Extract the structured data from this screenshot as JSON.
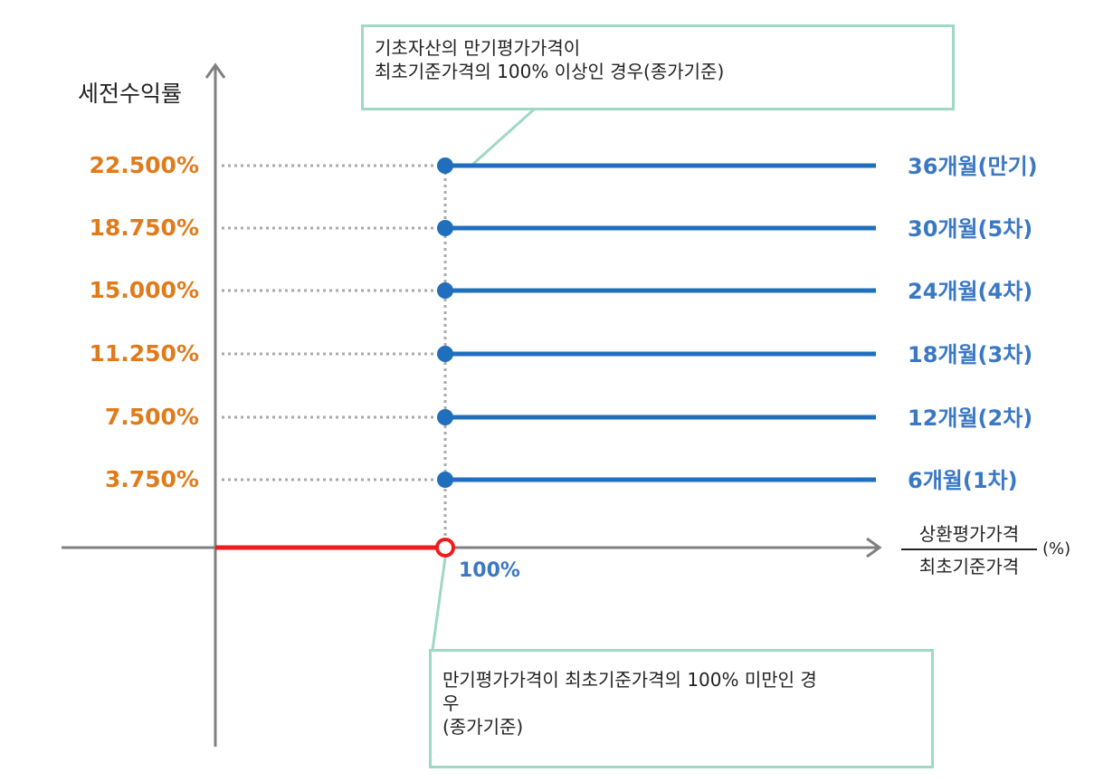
{
  "y_axis": {
    "label": "세전수익률"
  },
  "x_axis": {
    "value_label": "100%",
    "fraction_numerator": "상환평가가격",
    "fraction_denominator": "최초기준가격",
    "unit": "(%)"
  },
  "annotations": {
    "top": [
      "기초자산의 만기평가가격이",
      "최초기준가격의 100% 이상인 경우(종가기준)"
    ],
    "bottom": [
      "만기평가가격이 최초기준가격의 100% 미만인 경",
      "우",
      "(종가기준)"
    ]
  },
  "payoffs": [
    {
      "rate": "22.500%",
      "label": "36개월(만기)"
    },
    {
      "rate": "18.750%",
      "label": "30개월(5차)"
    },
    {
      "rate": "15.000%",
      "label": "24개월(4차)"
    },
    {
      "rate": "11.250%",
      "label": "18개월(3차)"
    },
    {
      "rate": "7.500%",
      "label": "12개월(2차)"
    },
    {
      "rate": "3.750%",
      "label": "6개월(1차)"
    }
  ],
  "colors": {
    "rate_text": "#e07b1b",
    "period_text": "#3a78c4",
    "payoff_line": "#1f6fbd",
    "loss_line": "#ee1c1c",
    "axis": "#808080",
    "callout_border": "#9fd8c4"
  }
}
